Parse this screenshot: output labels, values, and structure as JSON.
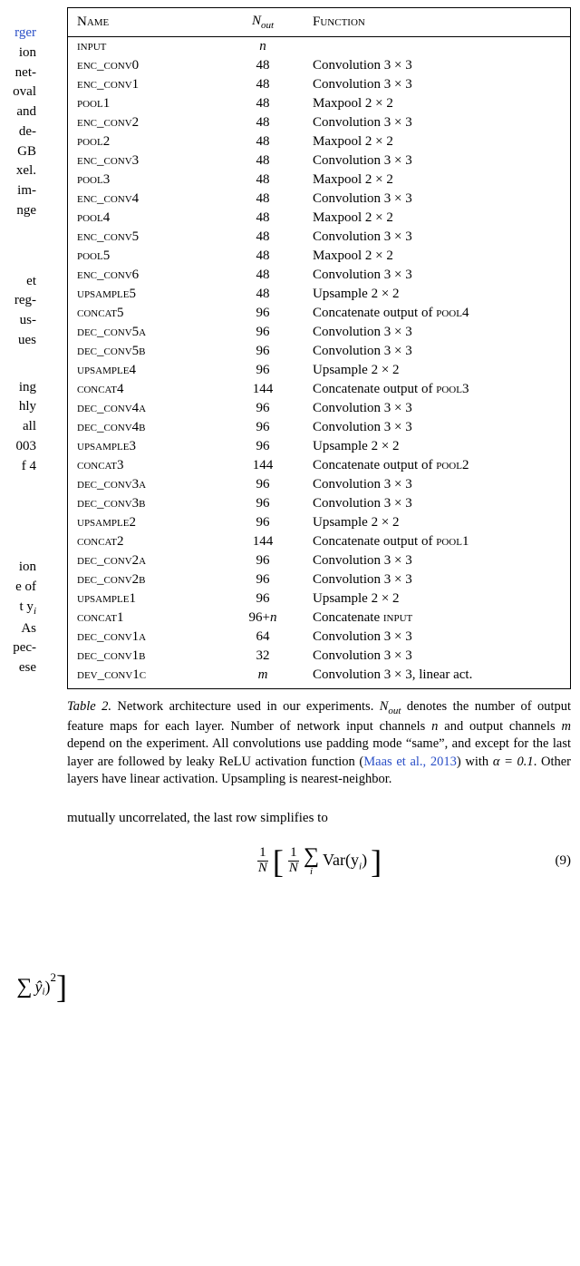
{
  "table": {
    "headers": [
      "Name",
      "N_out",
      "Function"
    ],
    "rows": [
      {
        "name": "input",
        "nout_expr": "n",
        "func": ""
      },
      {
        "name": "enc_conv0",
        "nout": "48",
        "func": "Convolution 3 × 3"
      },
      {
        "name": "enc_conv1",
        "nout": "48",
        "func": "Convolution 3 × 3"
      },
      {
        "name": "pool1",
        "nout": "48",
        "func": "Maxpool 2 × 2"
      },
      {
        "name": "enc_conv2",
        "nout": "48",
        "func": "Convolution 3 × 3"
      },
      {
        "name": "pool2",
        "nout": "48",
        "func": "Maxpool 2 × 2"
      },
      {
        "name": "enc_conv3",
        "nout": "48",
        "func": "Convolution 3 × 3"
      },
      {
        "name": "pool3",
        "nout": "48",
        "func": "Maxpool 2 × 2"
      },
      {
        "name": "enc_conv4",
        "nout": "48",
        "func": "Convolution 3 × 3"
      },
      {
        "name": "pool4",
        "nout": "48",
        "func": "Maxpool 2 × 2"
      },
      {
        "name": "enc_conv5",
        "nout": "48",
        "func": "Convolution 3 × 3"
      },
      {
        "name": "pool5",
        "nout": "48",
        "func": "Maxpool 2 × 2"
      },
      {
        "name": "enc_conv6",
        "nout": "48",
        "func": "Convolution 3 × 3"
      },
      {
        "name": "upsample5",
        "nout": "48",
        "func": "Upsample 2 × 2"
      },
      {
        "name": "concat5",
        "nout": "96",
        "func_prefix": "Concatenate output of ",
        "func_sc": "pool4"
      },
      {
        "name": "dec_conv5a",
        "nout": "96",
        "func": "Convolution 3 × 3"
      },
      {
        "name": "dec_conv5b",
        "nout": "96",
        "func": "Convolution 3 × 3"
      },
      {
        "name": "upsample4",
        "nout": "96",
        "func": "Upsample 2 × 2"
      },
      {
        "name": "concat4",
        "nout": "144",
        "func_prefix": "Concatenate output of ",
        "func_sc": "pool3"
      },
      {
        "name": "dec_conv4a",
        "nout": "96",
        "func": "Convolution 3 × 3"
      },
      {
        "name": "dec_conv4b",
        "nout": "96",
        "func": "Convolution 3 × 3"
      },
      {
        "name": "upsample3",
        "nout": "96",
        "func": "Upsample 2 × 2"
      },
      {
        "name": "concat3",
        "nout": "144",
        "func_prefix": "Concatenate output of ",
        "func_sc": "pool2"
      },
      {
        "name": "dec_conv3a",
        "nout": "96",
        "func": "Convolution 3 × 3"
      },
      {
        "name": "dec_conv3b",
        "nout": "96",
        "func": "Convolution 3 × 3"
      },
      {
        "name": "upsample2",
        "nout": "96",
        "func": "Upsample 2 × 2"
      },
      {
        "name": "concat2",
        "nout": "144",
        "func_prefix": "Concatenate output of ",
        "func_sc": "pool1"
      },
      {
        "name": "dec_conv2a",
        "nout": "96",
        "func": "Convolution 3 × 3"
      },
      {
        "name": "dec_conv2b",
        "nout": "96",
        "func": "Convolution 3 × 3"
      },
      {
        "name": "upsample1",
        "nout": "96",
        "func": "Upsample 2 × 2"
      },
      {
        "name": "concat1",
        "nout_expr": "96+n",
        "func_prefix": "Concatenate ",
        "func_sc": "input"
      },
      {
        "name": "dec_conv1a",
        "nout": "64",
        "func": "Convolution 3 × 3"
      },
      {
        "name": "dec_conv1b",
        "nout": "32",
        "func": "Convolution 3 × 3"
      },
      {
        "name": "dev_conv1c",
        "nout_expr": "m",
        "func": "Convolution 3 × 3, linear act."
      }
    ]
  },
  "caption": {
    "label": "Table 2.",
    "pre": " Network architecture used in our experiments. ",
    "nout": "N",
    "nout_sub": "out",
    "mid1": " denotes the number of output feature maps for each layer. Number of network input channels ",
    "n": "n",
    "mid2": " and output channels ",
    "m": "m",
    "mid3": " depend on the experiment. All convolutions use padding mode “same”, and except for the last layer are followed by leaky ReLU activation function (",
    "cite": "Maas et al., 2013",
    "mid4": ") with ",
    "alpha": "α = 0.1",
    "post": ". Other layers have linear activation. Upsampling is nearest-neighbor."
  },
  "body_line": "mutually uncorrelated, the last row simplifies to",
  "eq9": {
    "lhs_frac_num": "1",
    "lhs_frac_den": "N",
    "inner_frac_num": "1",
    "inner_frac_den": "N",
    "sum_sub": "i",
    "var": "Var(y",
    "var_sub": "i",
    "var_close": ")",
    "number": "(9)"
  },
  "eq8": {
    "yhat": "ŷ",
    "sub": "i",
    "close": ")",
    "sq": "2"
  },
  "left_fragments": {
    "l1": "rger",
    "l2": "ion",
    "l3": "net-",
    "l4": "oval",
    "l5": "and",
    "l6": "de-",
    "l7": "GB",
    "l8": "xel.",
    "l9": "im-",
    "l10": "nge",
    "l11": "et",
    "l12": "reg-",
    "l13": "us-",
    "l14": "ues",
    "l15": "ing",
    "l16": "hly",
    "l17": "all",
    "l18": "003",
    "l19": "f 4",
    "l20": "ion",
    "l21": "e of",
    "l22": "t y",
    "l22_sub": "i",
    "l23": "As",
    "l24": "pec-",
    "l25": "ese"
  }
}
